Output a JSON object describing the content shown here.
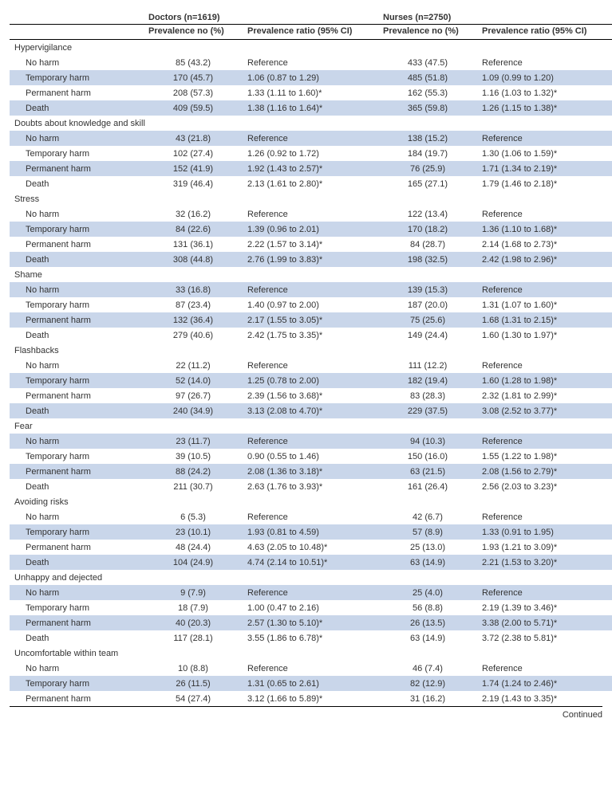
{
  "headers": {
    "doctors": "Doctors (n=1619)",
    "nurses": "Nurses (n=2750)",
    "prev": "Prevalence no (%)",
    "ratio": "Prevalence ratio (95% CI)"
  },
  "continued": "Continued",
  "sections": [
    {
      "title": "Hypervigilance",
      "rows": [
        {
          "label": "No harm",
          "d_prev": "85 (43.2)",
          "d_ratio": "Reference",
          "n_prev": "433 (47.5)",
          "n_ratio": "Reference",
          "band": false
        },
        {
          "label": "Temporary harm",
          "d_prev": "170 (45.7)",
          "d_ratio": "1.06 (0.87 to 1.29)",
          "n_prev": "485 (51.8)",
          "n_ratio": "1.09 (0.99 to 1.20)",
          "band": true
        },
        {
          "label": "Permanent harm",
          "d_prev": "208 (57.3)",
          "d_ratio": "1.33 (1.11 to 1.60)*",
          "n_prev": "162 (55.3)",
          "n_ratio": "1.16 (1.03 to 1.32)*",
          "band": false
        },
        {
          "label": "Death",
          "d_prev": "409 (59.5)",
          "d_ratio": "1.38 (1.16 to 1.64)*",
          "n_prev": "365 (59.8)",
          "n_ratio": "1.26 (1.15 to 1.38)*",
          "band": true
        }
      ]
    },
    {
      "title": "Doubts about knowledge and skill",
      "rows": [
        {
          "label": "No harm",
          "d_prev": "43 (21.8)",
          "d_ratio": "Reference",
          "n_prev": "138 (15.2)",
          "n_ratio": "Reference",
          "band": true
        },
        {
          "label": "Temporary harm",
          "d_prev": "102 (27.4)",
          "d_ratio": "1.26 (0.92 to 1.72)",
          "n_prev": "184 (19.7)",
          "n_ratio": "1.30 (1.06 to 1.59)*",
          "band": false
        },
        {
          "label": "Permanent harm",
          "d_prev": "152 (41.9)",
          "d_ratio": "1.92 (1.43 to 2.57)*",
          "n_prev": "76 (25.9)",
          "n_ratio": "1.71 (1.34 to 2.19)*",
          "band": true
        },
        {
          "label": "Death",
          "d_prev": "319 (46.4)",
          "d_ratio": "2.13 (1.61 to 2.80)*",
          "n_prev": "165 (27.1)",
          "n_ratio": "1.79 (1.46 to 2.18)*",
          "band": false
        }
      ]
    },
    {
      "title": "Stress",
      "rows": [
        {
          "label": "No harm",
          "d_prev": "32 (16.2)",
          "d_ratio": "Reference",
          "n_prev": "122 (13.4)",
          "n_ratio": "Reference",
          "band": false
        },
        {
          "label": "Temporary harm",
          "d_prev": "84 (22.6)",
          "d_ratio": "1.39 (0.96 to 2.01)",
          "n_prev": "170 (18.2)",
          "n_ratio": "1.36 (1.10 to 1.68)*",
          "band": true
        },
        {
          "label": "Permanent harm",
          "d_prev": "131 (36.1)",
          "d_ratio": "2.22 (1.57 to 3.14)*",
          "n_prev": "84 (28.7)",
          "n_ratio": "2.14 (1.68 to 2.73)*",
          "band": false
        },
        {
          "label": "Death",
          "d_prev": "308 (44.8)",
          "d_ratio": "2.76 (1.99 to 3.83)*",
          "n_prev": "198 (32.5)",
          "n_ratio": "2.42 (1.98 to 2.96)*",
          "band": true
        }
      ]
    },
    {
      "title": "Shame",
      "rows": [
        {
          "label": "No harm",
          "d_prev": "33 (16.8)",
          "d_ratio": "Reference",
          "n_prev": "139 (15.3)",
          "n_ratio": "Reference",
          "band": true
        },
        {
          "label": "Temporary harm",
          "d_prev": "87 (23.4)",
          "d_ratio": "1.40 (0.97 to 2.00)",
          "n_prev": "187 (20.0)",
          "n_ratio": "1.31 (1.07 to 1.60)*",
          "band": false
        },
        {
          "label": "Permanent harm",
          "d_prev": "132 (36.4)",
          "d_ratio": "2.17 (1.55 to 3.05)*",
          "n_prev": "75 (25.6)",
          "n_ratio": "1.68 (1.31 to 2.15)*",
          "band": true
        },
        {
          "label": "Death",
          "d_prev": "279 (40.6)",
          "d_ratio": "2.42 (1.75 to 3.35)*",
          "n_prev": "149 (24.4)",
          "n_ratio": "1.60 (1.30 to 1.97)*",
          "band": false
        }
      ]
    },
    {
      "title": "Flashbacks",
      "rows": [
        {
          "label": "No harm",
          "d_prev": "22 (11.2)",
          "d_ratio": "Reference",
          "n_prev": "111 (12.2)",
          "n_ratio": "Reference",
          "band": false
        },
        {
          "label": "Temporary harm",
          "d_prev": "52 (14.0)",
          "d_ratio": "1.25 (0.78 to 2.00)",
          "n_prev": "182 (19.4)",
          "n_ratio": "1.60 (1.28 to 1.98)*",
          "band": true
        },
        {
          "label": "Permanent harm",
          "d_prev": "97 (26.7)",
          "d_ratio": "2.39 (1.56 to 3.68)*",
          "n_prev": "83 (28.3)",
          "n_ratio": "2.32 (1.81 to 2.99)*",
          "band": false
        },
        {
          "label": "Death",
          "d_prev": "240 (34.9)",
          "d_ratio": "3.13 (2.08 to 4.70)*",
          "n_prev": "229 (37.5)",
          "n_ratio": "3.08 (2.52 to 3.77)*",
          "band": true
        }
      ]
    },
    {
      "title": "Fear",
      "rows": [
        {
          "label": "No harm",
          "d_prev": "23 (11.7)",
          "d_ratio": "Reference",
          "n_prev": "94 (10.3)",
          "n_ratio": "Reference",
          "band": true
        },
        {
          "label": "Temporary harm",
          "d_prev": "39 (10.5)",
          "d_ratio": "0.90 (0.55 to 1.46)",
          "n_prev": "150 (16.0)",
          "n_ratio": "1.55 (1.22 to 1.98)*",
          "band": false
        },
        {
          "label": "Permanent harm",
          "d_prev": "88 (24.2)",
          "d_ratio": "2.08 (1.36 to 3.18)*",
          "n_prev": "63 (21.5)",
          "n_ratio": "2.08 (1.56 to 2.79)*",
          "band": true
        },
        {
          "label": "Death",
          "d_prev": "211 (30.7)",
          "d_ratio": "2.63 (1.76 to 3.93)*",
          "n_prev": "161 (26.4)",
          "n_ratio": "2.56 (2.03 to 3.23)*",
          "band": false
        }
      ]
    },
    {
      "title": "Avoiding risks",
      "rows": [
        {
          "label": "No harm",
          "d_prev": "6 (5.3)",
          "d_ratio": "Reference",
          "n_prev": "42 (6.7)",
          "n_ratio": "Reference",
          "band": false
        },
        {
          "label": "Temporary harm",
          "d_prev": "23 (10.1)",
          "d_ratio": "1.93 (0.81 to 4.59)",
          "n_prev": "57 (8.9)",
          "n_ratio": "1.33 (0.91 to 1.95)",
          "band": true
        },
        {
          "label": "Permanent harm",
          "d_prev": "48 (24.4)",
          "d_ratio": "4.63 (2.05 to 10.48)*",
          "n_prev": "25 (13.0)",
          "n_ratio": "1.93 (1.21 to 3.09)*",
          "band": false
        },
        {
          "label": "Death",
          "d_prev": "104 (24.9)",
          "d_ratio": "4.74 (2.14 to 10.51)*",
          "n_prev": "63 (14.9)",
          "n_ratio": "2.21 (1.53 to 3.20)*",
          "band": true
        }
      ]
    },
    {
      "title": "Unhappy and dejected",
      "rows": [
        {
          "label": "No harm",
          "d_prev": "9 (7.9)",
          "d_ratio": "Reference",
          "n_prev": "25 (4.0)",
          "n_ratio": "Reference",
          "band": true
        },
        {
          "label": "Temporary harm",
          "d_prev": "18 (7.9)",
          "d_ratio": "1.00 (0.47 to 2.16)",
          "n_prev": "56 (8.8)",
          "n_ratio": "2.19 (1.39 to 3.46)*",
          "band": false
        },
        {
          "label": "Permanent harm",
          "d_prev": "40 (20.3)",
          "d_ratio": "2.57 (1.30 to 5.10)*",
          "n_prev": "26 (13.5)",
          "n_ratio": "3.38 (2.00 to 5.71)*",
          "band": true
        },
        {
          "label": "Death",
          "d_prev": "117 (28.1)",
          "d_ratio": "3.55 (1.86 to 6.78)*",
          "n_prev": "63 (14.9)",
          "n_ratio": "3.72 (2.38 to 5.81)*",
          "band": false
        }
      ]
    },
    {
      "title": "Uncomfortable within team",
      "rows": [
        {
          "label": "No harm",
          "d_prev": "10 (8.8)",
          "d_ratio": "Reference",
          "n_prev": "46 (7.4)",
          "n_ratio": "Reference",
          "band": false
        },
        {
          "label": "Temporary harm",
          "d_prev": "26 (11.5)",
          "d_ratio": "1.31 (0.65 to 2.61)",
          "n_prev": "82 (12.9)",
          "n_ratio": "1.74 (1.24 to 2.46)*",
          "band": true
        },
        {
          "label": "Permanent harm",
          "d_prev": "54 (27.4)",
          "d_ratio": "3.12 (1.66 to 5.89)*",
          "n_prev": "31 (16.2)",
          "n_ratio": "2.19 (1.43 to 3.35)*",
          "band": false
        }
      ]
    }
  ]
}
